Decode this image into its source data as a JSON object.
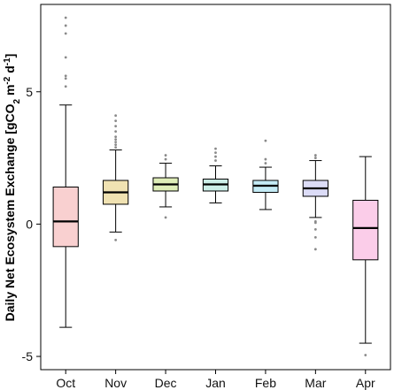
{
  "chart_data": {
    "type": "box",
    "title": "",
    "xlabel": "",
    "ylabel": {
      "main": "Daily Net Ecosystem Exchange [gCO",
      "sub": "2",
      "mid": " m",
      "sup1": "-2",
      "mid2": " d",
      "sup2": "-1",
      "end": "]"
    },
    "ylim": [
      -5.5,
      8.3
    ],
    "yticks": [
      -5,
      0,
      5
    ],
    "ytick_labels": [
      "-5",
      "0",
      "5"
    ],
    "grid": false,
    "legend": "none",
    "categories": [
      "Oct",
      "Nov",
      "Dec",
      "Jan",
      "Feb",
      "Mar",
      "Apr"
    ],
    "boxes": [
      {
        "label": "Oct",
        "color": "#f9d0d0",
        "whisker_low": -3.9,
        "q1": -0.85,
        "median": 0.1,
        "q3": 1.4,
        "whisker_high": 4.5,
        "outliers": [
          5.2,
          5.5,
          5.6,
          6.3,
          7.2,
          7.5,
          7.8
        ]
      },
      {
        "label": "Nov",
        "color": "#f0e2b2",
        "whisker_low": -0.3,
        "q1": 0.75,
        "median": 1.2,
        "q3": 1.65,
        "whisker_high": 2.8,
        "outliers": [
          -0.6,
          2.9,
          3.0,
          3.1,
          3.2,
          3.3,
          3.5,
          3.7,
          3.9,
          4.1
        ]
      },
      {
        "label": "Dec",
        "color": "#deedb8",
        "whisker_low": 0.65,
        "q1": 1.25,
        "median": 1.5,
        "q3": 1.75,
        "whisker_high": 2.3,
        "outliers": [
          0.25,
          2.45,
          2.6
        ]
      },
      {
        "label": "Jan",
        "color": "#ccefe8",
        "whisker_low": 0.8,
        "q1": 1.25,
        "median": 1.5,
        "q3": 1.7,
        "whisker_high": 2.2,
        "outliers": [
          2.4,
          2.55,
          2.7,
          2.85
        ]
      },
      {
        "label": "Feb",
        "color": "#c4ebf5",
        "whisker_low": 0.55,
        "q1": 1.2,
        "median": 1.45,
        "q3": 1.65,
        "whisker_high": 2.15,
        "outliers": [
          2.3,
          2.45,
          3.15
        ]
      },
      {
        "label": "Mar",
        "color": "#dcdcf7",
        "whisker_low": 0.25,
        "q1": 1.05,
        "median": 1.35,
        "q3": 1.65,
        "whisker_high": 2.4,
        "outliers": [
          -0.95,
          -0.5,
          -0.2,
          0.1,
          0.05,
          2.5,
          2.6
        ]
      },
      {
        "label": "Apr",
        "color": "#fbcde9",
        "whisker_low": -4.5,
        "q1": -1.35,
        "median": -0.15,
        "q3": 0.9,
        "whisker_high": 2.55,
        "outliers": [
          -4.95
        ]
      }
    ]
  }
}
